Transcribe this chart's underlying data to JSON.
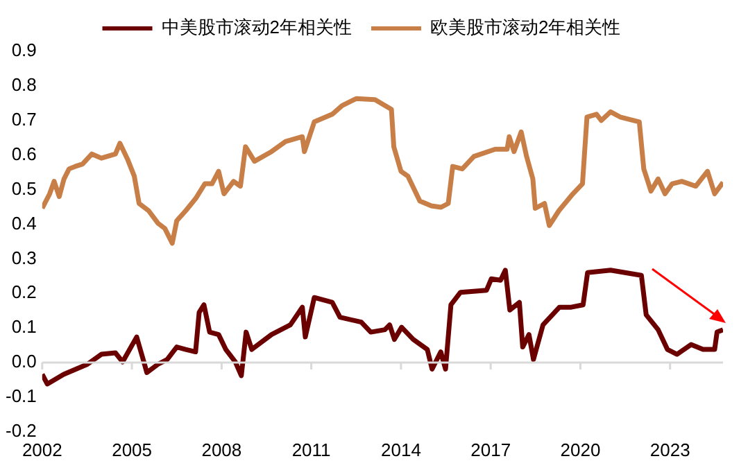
{
  "chart_data": {
    "type": "line",
    "legend": "top",
    "grid": false,
    "marker": "none",
    "line_style": "solid",
    "xlim": [
      2002,
      2024.77
    ],
    "xticks": [
      2002,
      2005,
      2008,
      2011,
      2014,
      2017,
      2020,
      2023
    ],
    "ref_lines": [
      {
        "axis": "y",
        "value": 0,
        "color": "#d9d9d9"
      }
    ],
    "ylim": [
      -0.2,
      0.9
    ],
    "yticks": [
      -0.2,
      -0.1,
      {
        "value": 0,
        "label": "0.0"
      },
      0.1,
      0.2,
      0.3,
      0.4,
      0.5,
      0.6,
      0.7,
      0.8,
      0.9
    ],
    "series": [
      {
        "name": "中美股市滚动2年相关性",
        "color": "#6b0000",
        "x": [
          2002.0,
          2002.17,
          2002.72,
          2003.51,
          2003.98,
          2004.45,
          2004.69,
          2005.16,
          2005.4,
          2005.5,
          2005.87,
          2006.18,
          2006.5,
          2006.8,
          2007.13,
          2007.25,
          2007.41,
          2007.6,
          2007.9,
          2008.14,
          2008.46,
          2008.66,
          2008.82,
          2009.01,
          2009.67,
          2010.3,
          2010.7,
          2010.8,
          2011.1,
          2011.7,
          2011.96,
          2012.67,
          2012.99,
          2013.46,
          2013.62,
          2013.78,
          2014.02,
          2014.41,
          2014.88,
          2015.04,
          2015.33,
          2015.49,
          2015.67,
          2015.99,
          2016.86,
          2017.02,
          2017.33,
          2017.49,
          2017.64,
          2017.96,
          2018.07,
          2018.28,
          2018.43,
          2018.75,
          2019.3,
          2019.69,
          2020.09,
          2020.24,
          2021.01,
          2022.04,
          2022.2,
          2022.6,
          2022.91,
          2023.23,
          2023.7,
          2024.1,
          2024.49,
          2024.57,
          2024.77
        ],
        "values": [
          -0.034,
          -0.062,
          -0.034,
          -0.005,
          0.024,
          0.028,
          0.002,
          0.074,
          0.002,
          -0.029,
          -0.005,
          0.009,
          0.045,
          0.038,
          0.031,
          0.145,
          0.167,
          0.088,
          0.081,
          0.038,
          0.002,
          -0.038,
          0.088,
          0.038,
          0.081,
          0.109,
          0.16,
          0.074,
          0.188,
          0.174,
          0.131,
          0.117,
          0.088,
          0.095,
          0.109,
          0.067,
          0.102,
          0.067,
          0.038,
          -0.019,
          0.031,
          -0.019,
          0.167,
          0.203,
          0.209,
          0.242,
          0.238,
          0.267,
          0.152,
          0.174,
          0.045,
          0.081,
          0.009,
          0.109,
          0.16,
          0.16,
          0.167,
          0.26,
          0.267,
          0.252,
          0.138,
          0.095,
          0.038,
          0.024,
          0.052,
          0.038,
          0.038,
          0.088,
          0.095
        ]
      },
      {
        "name": "欧美股市滚动2年相关性",
        "color": "#c87f47",
        "x": [
          2002.0,
          2002.25,
          2002.4,
          2002.57,
          2002.73,
          2002.9,
          2003.1,
          2003.35,
          2003.66,
          2003.98,
          2004.45,
          2004.6,
          2004.85,
          2005.08,
          2005.24,
          2005.56,
          2005.87,
          2006.1,
          2006.35,
          2006.5,
          2006.8,
          2007.13,
          2007.44,
          2007.68,
          2007.9,
          2008.08,
          2008.4,
          2008.63,
          2008.8,
          2009.1,
          2009.67,
          2010.14,
          2010.7,
          2010.77,
          2011.1,
          2011.7,
          2012.03,
          2012.5,
          2013.13,
          2013.68,
          2013.76,
          2014.0,
          2014.23,
          2014.63,
          2015.02,
          2015.34,
          2015.58,
          2015.73,
          2016.05,
          2016.44,
          2017.15,
          2017.55,
          2017.62,
          2017.78,
          2018.02,
          2018.2,
          2018.41,
          2018.49,
          2018.8,
          2018.96,
          2019.28,
          2019.75,
          2020.07,
          2020.22,
          2020.54,
          2020.7,
          2021.01,
          2021.33,
          2021.97,
          2022.12,
          2022.36,
          2022.6,
          2022.83,
          2023.07,
          2023.39,
          2023.86,
          2024.25,
          2024.49,
          2024.77
        ],
        "values": [
          0.446,
          0.488,
          0.524,
          0.48,
          0.531,
          0.56,
          0.567,
          0.574,
          0.603,
          0.591,
          0.603,
          0.634,
          0.589,
          0.539,
          0.46,
          0.439,
          0.403,
          0.388,
          0.345,
          0.41,
          0.439,
          0.474,
          0.517,
          0.517,
          0.553,
          0.488,
          0.524,
          0.51,
          0.624,
          0.582,
          0.61,
          0.639,
          0.653,
          0.61,
          0.696,
          0.718,
          0.743,
          0.763,
          0.76,
          0.732,
          0.624,
          0.553,
          0.539,
          0.467,
          0.453,
          0.449,
          0.46,
          0.567,
          0.56,
          0.596,
          0.617,
          0.617,
          0.653,
          0.61,
          0.667,
          0.596,
          0.531,
          0.446,
          0.46,
          0.396,
          0.439,
          0.488,
          0.517,
          0.71,
          0.718,
          0.7,
          0.725,
          0.71,
          0.696,
          0.56,
          0.496,
          0.531,
          0.488,
          0.517,
          0.524,
          0.51,
          0.553,
          0.488,
          0.521
        ]
      }
    ]
  }
}
